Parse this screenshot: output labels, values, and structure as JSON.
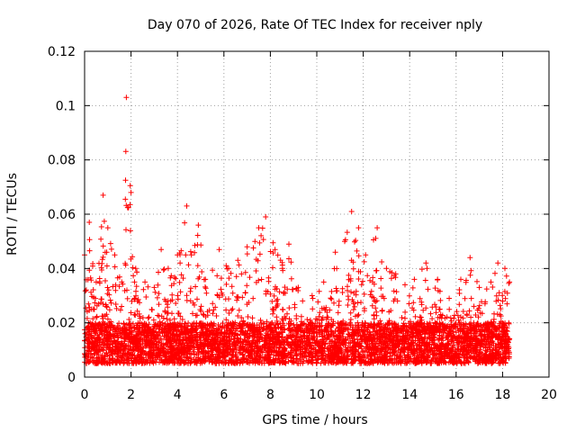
{
  "chart_data": {
    "type": "scatter",
    "title": "Day 070 of 2026, Rate Of TEC Index for receiver nply",
    "xlabel": "GPS time / hours",
    "ylabel": "ROTI / TECUs",
    "xlim": [
      0,
      20
    ],
    "ylim": [
      0,
      0.12
    ],
    "xticks": [
      0,
      2,
      4,
      6,
      8,
      10,
      12,
      14,
      16,
      18,
      20
    ],
    "xtick_labels": [
      "0",
      "2",
      "4",
      "6",
      "8",
      "10",
      "12",
      "14",
      "16",
      "18",
      "20"
    ],
    "yticks": [
      0,
      0.02,
      0.04,
      0.06,
      0.08,
      0.1,
      0.12
    ],
    "ytick_labels": [
      "0",
      "0.02",
      "0.04",
      "0.06",
      "0.08",
      "0.1",
      "0.12"
    ],
    "grid": true,
    "marker": "+",
    "color": "#ff0000",
    "series": [
      {
        "name": "ROTI",
        "x_range": [
          0,
          18.3
        ],
        "baseline_low": 0.005,
        "baseline_high": 0.02,
        "envelope": [
          [
            0.0,
            0.045
          ],
          [
            0.2,
            0.057
          ],
          [
            0.5,
            0.035
          ],
          [
            0.8,
            0.067
          ],
          [
            1.0,
            0.055
          ],
          [
            1.3,
            0.045
          ],
          [
            1.6,
            0.035
          ],
          [
            1.8,
            0.103
          ],
          [
            2.0,
            0.068
          ],
          [
            2.2,
            0.04
          ],
          [
            2.6,
            0.035
          ],
          [
            3.0,
            0.033
          ],
          [
            3.3,
            0.047
          ],
          [
            3.6,
            0.04
          ],
          [
            4.0,
            0.045
          ],
          [
            4.4,
            0.063
          ],
          [
            4.6,
            0.045
          ],
          [
            4.9,
            0.056
          ],
          [
            5.2,
            0.036
          ],
          [
            5.8,
            0.047
          ],
          [
            6.2,
            0.04
          ],
          [
            6.6,
            0.043
          ],
          [
            7.0,
            0.048
          ],
          [
            7.5,
            0.055
          ],
          [
            7.8,
            0.059
          ],
          [
            8.2,
            0.047
          ],
          [
            8.8,
            0.049
          ],
          [
            9.2,
            0.033
          ],
          [
            9.8,
            0.03
          ],
          [
            10.3,
            0.035
          ],
          [
            10.8,
            0.046
          ],
          [
            11.2,
            0.05
          ],
          [
            11.5,
            0.061
          ],
          [
            11.8,
            0.055
          ],
          [
            12.1,
            0.045
          ],
          [
            12.6,
            0.055
          ],
          [
            13.0,
            0.04
          ],
          [
            13.4,
            0.038
          ],
          [
            13.8,
            0.034
          ],
          [
            14.2,
            0.036
          ],
          [
            14.7,
            0.042
          ],
          [
            15.2,
            0.036
          ],
          [
            15.7,
            0.029
          ],
          [
            16.2,
            0.036
          ],
          [
            16.6,
            0.044
          ],
          [
            17.0,
            0.033
          ],
          [
            17.5,
            0.035
          ],
          [
            17.8,
            0.042
          ],
          [
            18.1,
            0.04
          ],
          [
            18.3,
            0.035
          ]
        ]
      }
    ]
  }
}
